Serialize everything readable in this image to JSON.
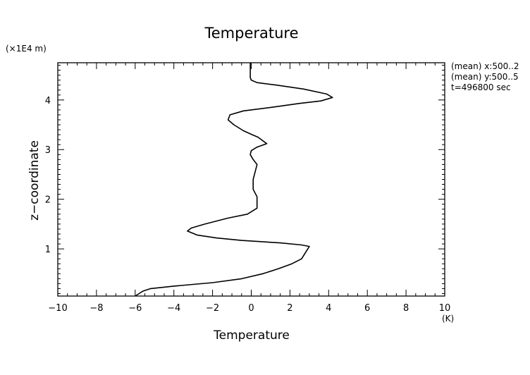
{
  "chart_data": {
    "type": "line",
    "title": "Temperature",
    "xlabel": "Temperature",
    "xunit": "(K)",
    "ylabel": "z−coordinate",
    "yunit": "(×1E4 m)",
    "xlim": [
      -10,
      10
    ],
    "ylim": [
      0.05,
      4.75
    ],
    "xticks": [
      -10,
      -8,
      -6,
      -4,
      -2,
      0,
      2,
      4,
      6,
      8,
      10
    ],
    "xtick_labels": [
      "−10",
      "−8",
      "−6",
      "−4",
      "−2",
      "0",
      "2",
      "4",
      "6",
      "8",
      "10"
    ],
    "yticks": [
      1,
      2,
      3,
      4
    ],
    "ytick_labels": [
      "1",
      "2",
      "3",
      "4"
    ],
    "grid": false,
    "annotations": [
      "(mean) x:500..2",
      "(mean) y:500..5",
      "t=496800 sec"
    ],
    "series": [
      {
        "color": "#000000",
        "x": [
          -6.0,
          -5.8,
          -5.6,
          -5.2,
          -4.0,
          -2.0,
          -0.5,
          0.6,
          1.4,
          2.1,
          2.6,
          3.0,
          2.6,
          1.5,
          -0.5,
          -1.8,
          -2.8,
          -3.3,
          -3.1,
          -2.4,
          -1.2,
          -0.2,
          0.3,
          0.3,
          0.1,
          0.1,
          0.2,
          0.3,
          0.1,
          -0.05,
          0.0,
          0.3,
          0.8,
          0.35,
          0.05,
          -0.4,
          -0.9,
          -1.2,
          -1.1,
          -0.4,
          1.0,
          2.5,
          3.6,
          4.2,
          3.9,
          2.7,
          1.3,
          0.3,
          0.0,
          -0.05,
          -0.05,
          -0.05,
          -0.05
        ],
        "y": [
          0.05,
          0.1,
          0.15,
          0.2,
          0.25,
          0.32,
          0.4,
          0.5,
          0.6,
          0.7,
          0.8,
          1.05,
          1.08,
          1.12,
          1.17,
          1.22,
          1.28,
          1.36,
          1.42,
          1.5,
          1.62,
          1.7,
          1.82,
          2.05,
          2.2,
          2.4,
          2.55,
          2.7,
          2.8,
          2.9,
          2.98,
          3.05,
          3.12,
          3.25,
          3.3,
          3.38,
          3.5,
          3.6,
          3.7,
          3.78,
          3.85,
          3.93,
          3.98,
          4.05,
          4.12,
          4.22,
          4.3,
          4.35,
          4.4,
          4.45,
          4.6,
          4.7,
          4.75
        ]
      }
    ]
  }
}
